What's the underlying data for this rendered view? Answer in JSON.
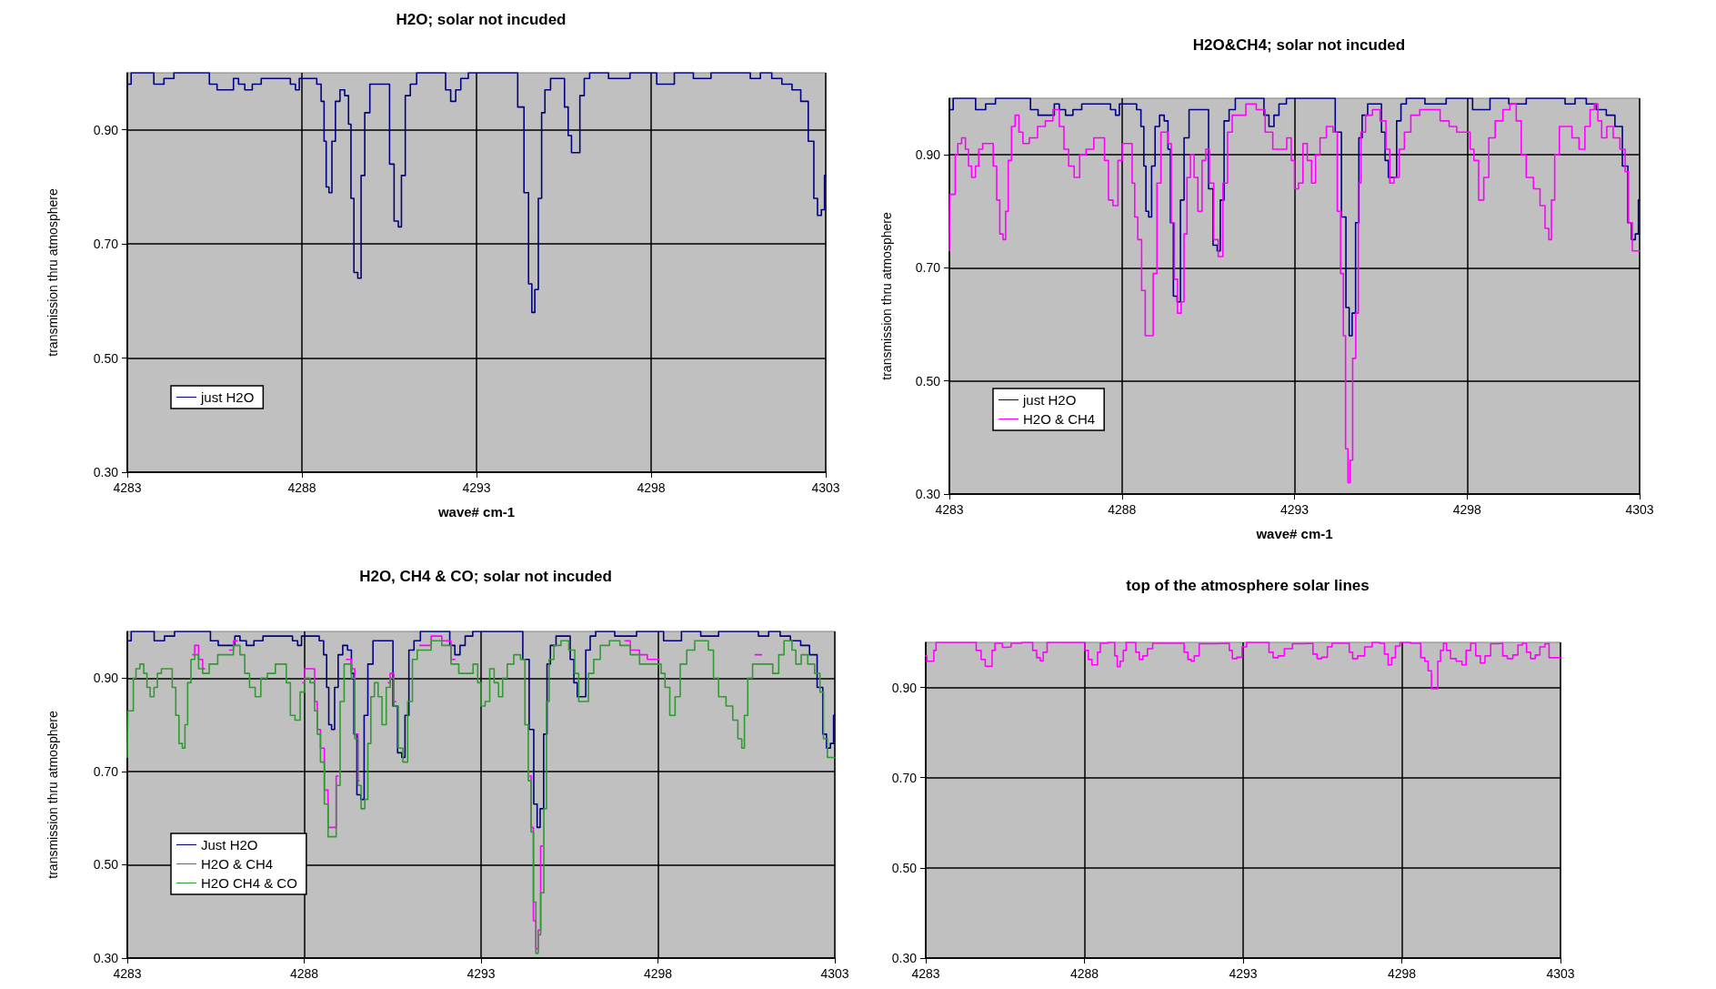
{
  "chart_data": [
    {
      "type": "step",
      "title": "H2O; solar not incuded",
      "xlabel": "wave# cm-1",
      "ylabel": "transmission thru atmosphere",
      "xlim": [
        4283,
        4303
      ],
      "xticks": [
        4283,
        4288,
        4293,
        4298,
        4303
      ],
      "ylim": [
        0.3,
        1.0
      ],
      "yticks": [
        {
          "value": 0.3,
          "label": "0.30"
        },
        {
          "value": 0.5,
          "label": "0.50"
        },
        {
          "value": 0.7,
          "label": "0.70"
        },
        {
          "value": 0.9,
          "label": "0.90"
        }
      ],
      "grid": true,
      "legend": "bottom left",
      "marker": "none",
      "series": [
        {
          "name": "just H2O",
          "color": "#000080",
          "x": [
            4283.0,
            4283.22,
            4283.72,
            4283.8,
            4284.01,
            4284.09,
            4284.3,
            4284.37,
            4285.24,
            4285.46,
            4285.68,
            4285.97,
            4286.11,
            4286.26,
            4286.47,
            4286.69,
            4286.98,
            4287.56,
            4287.78,
            4287.85,
            4288.0,
            4288.35,
            4288.5,
            4288.6,
            4288.67,
            4288.72,
            4288.83,
            4288.89,
            4289.03,
            4289.15,
            4289.3,
            4289.37,
            4289.44,
            4289.54,
            4289.66,
            4289.73,
            4289.87,
            4290.02,
            4290.16,
            4290.45,
            4290.57,
            4290.71,
            4290.81,
            4290.89,
            4291.03,
            4291.18,
            4291.39,
            4292.04,
            4292.19,
            4292.33,
            4292.48,
            4292.62,
            4292.91,
            4294.07,
            4294.29,
            4294.43,
            4294.55,
            4294.62,
            4294.72,
            4294.82,
            4294.91,
            4295.01,
            4295.23,
            4295.45,
            4295.59,
            4295.66,
            4295.78,
            4295.92,
            4296.0,
            4296.17,
            4296.31,
            4297.25,
            4297.54,
            4298.05,
            4298.27,
            4298.48,
            4298.85,
            4299.57,
            4299.86,
            4300.73,
            4300.95,
            4301.31,
            4301.6,
            4301.89,
            4302.18,
            4302.39,
            4302.61,
            4302.71,
            4302.82,
            4302.93,
            4303.0
          ],
          "values": [
            0.98,
            1.0,
            1.0,
            0.98,
            0.98,
            0.99,
            0.99,
            1.0,
            1.0,
            0.98,
            0.97,
            0.97,
            0.99,
            0.98,
            0.97,
            0.98,
            0.99,
            0.99,
            0.98,
            0.97,
            0.99,
            0.99,
            0.98,
            0.95,
            0.88,
            0.8,
            0.79,
            0.88,
            0.95,
            0.97,
            0.96,
            0.91,
            0.78,
            0.65,
            0.64,
            0.82,
            0.93,
            0.98,
            0.98,
            0.98,
            0.84,
            0.74,
            0.73,
            0.82,
            0.96,
            0.98,
            1.0,
            1.0,
            0.97,
            0.95,
            0.97,
            0.99,
            1.0,
            1.0,
            0.94,
            0.79,
            0.63,
            0.58,
            0.62,
            0.78,
            0.93,
            0.97,
            0.99,
            0.99,
            0.94,
            0.89,
            0.86,
            0.86,
            0.96,
            0.99,
            1.0,
            0.99,
            1.0,
            1.0,
            0.98,
            0.98,
            1.0,
            0.99,
            1.0,
            1.0,
            0.99,
            1.0,
            0.99,
            0.98,
            0.97,
            0.95,
            0.88,
            0.78,
            0.75,
            0.76,
            0.82
          ]
        }
      ]
    },
    {
      "type": "step",
      "title": "H2O&CH4; solar not incuded",
      "xlabel": "wave# cm-1",
      "ylabel": "transmission thru atmosphere",
      "xlim": [
        4283,
        4303
      ],
      "xticks": [
        4283,
        4288,
        4293,
        4298,
        4303
      ],
      "ylim": [
        0.3,
        1.0
      ],
      "yticks": [
        {
          "value": 0.3,
          "label": "0.30"
        },
        {
          "value": 0.5,
          "label": "0.50"
        },
        {
          "value": 0.7,
          "label": "0.70"
        },
        {
          "value": 0.9,
          "label": "0.90"
        }
      ],
      "grid": true,
      "legend": "bottom left",
      "marker": "none",
      "series": [
        {
          "name": "just H2O",
          "color": "#000080",
          "x": [
            4283.0,
            4283.22,
            4283.72,
            4283.8,
            4284.01,
            4284.09,
            4284.3,
            4284.37,
            4285.24,
            4285.46,
            4285.68,
            4285.97,
            4286.11,
            4286.26,
            4286.47,
            4286.69,
            4286.98,
            4287.56,
            4287.78,
            4287.85,
            4288.0,
            4288.35,
            4288.5,
            4288.6,
            4288.67,
            4288.72,
            4288.83,
            4288.89,
            4289.03,
            4289.15,
            4289.3,
            4289.37,
            4289.44,
            4289.54,
            4289.66,
            4289.73,
            4289.87,
            4290.02,
            4290.16,
            4290.45,
            4290.57,
            4290.71,
            4290.81,
            4290.89,
            4291.03,
            4291.18,
            4291.39,
            4292.04,
            4292.19,
            4292.33,
            4292.48,
            4292.62,
            4292.91,
            4294.07,
            4294.29,
            4294.43,
            4294.55,
            4294.62,
            4294.72,
            4294.82,
            4294.91,
            4295.01,
            4295.23,
            4295.45,
            4295.59,
            4295.66,
            4295.78,
            4295.92,
            4296.0,
            4296.17,
            4296.31,
            4297.25,
            4297.54,
            4298.05,
            4298.27,
            4298.48,
            4298.85,
            4299.57,
            4299.86,
            4300.73,
            4300.95,
            4301.31,
            4301.6,
            4301.89,
            4302.18,
            4302.39,
            4302.61,
            4302.71,
            4302.82,
            4302.93,
            4303.0
          ],
          "values": [
            0.98,
            1.0,
            1.0,
            0.98,
            0.98,
            0.99,
            0.99,
            1.0,
            1.0,
            0.98,
            0.97,
            0.97,
            0.99,
            0.98,
            0.97,
            0.98,
            0.99,
            0.99,
            0.98,
            0.97,
            0.99,
            0.99,
            0.98,
            0.95,
            0.88,
            0.8,
            0.79,
            0.88,
            0.95,
            0.97,
            0.96,
            0.91,
            0.78,
            0.65,
            0.64,
            0.82,
            0.93,
            0.98,
            0.98,
            0.98,
            0.84,
            0.74,
            0.73,
            0.82,
            0.96,
            0.98,
            1.0,
            1.0,
            0.97,
            0.95,
            0.97,
            0.99,
            1.0,
            1.0,
            0.94,
            0.79,
            0.63,
            0.58,
            0.62,
            0.78,
            0.93,
            0.97,
            0.99,
            0.99,
            0.94,
            0.89,
            0.86,
            0.86,
            0.96,
            0.99,
            1.0,
            0.99,
            1.0,
            1.0,
            0.98,
            0.98,
            1.0,
            0.99,
            1.0,
            1.0,
            0.99,
            1.0,
            0.99,
            0.98,
            0.97,
            0.95,
            0.88,
            0.78,
            0.75,
            0.76,
            0.82
          ]
        },
        {
          "name": "H2O & CH4",
          "color": "#ff00ff",
          "x": [
            4283.0,
            4283.03,
            4283.15,
            4283.19,
            4283.3,
            4283.41,
            4283.52,
            4283.59,
            4283.7,
            4283.81,
            4283.89,
            4284.04,
            4284.21,
            4284.33,
            4284.41,
            4284.51,
            4284.6,
            4284.66,
            4284.75,
            4284.85,
            4284.96,
            4285.07,
            4285.19,
            4285.44,
            4285.67,
            4285.89,
            4286.11,
            4286.26,
            4286.38,
            4286.53,
            4286.7,
            4286.85,
            4287.07,
            4287.3,
            4287.44,
            4287.55,
            4287.67,
            4287.81,
            4287.96,
            4288.07,
            4288.26,
            4288.33,
            4288.41,
            4288.51,
            4288.63,
            4288.72,
            4288.85,
            4288.96,
            4289.07,
            4289.19,
            4289.3,
            4289.37,
            4289.49,
            4289.55,
            4289.67,
            4289.76,
            4289.84,
            4289.93,
            4290.04,
            4290.14,
            4290.26,
            4290.38,
            4290.48,
            4290.59,
            4290.73,
            4290.85,
            4291.0,
            4291.12,
            4291.27,
            4291.44,
            4291.74,
            4292.04,
            4292.26,
            4292.48,
            4292.7,
            4292.85,
            4292.96,
            4293.04,
            4293.19,
            4293.3,
            4293.44,
            4293.55,
            4293.67,
            4293.81,
            4294.04,
            4294.19,
            4294.29,
            4294.38,
            4294.45,
            4294.51,
            4294.59,
            4294.64,
            4294.73,
            4294.82,
            4294.88,
            4294.97,
            4295.15,
            4295.37,
            4295.59,
            4295.71,
            4295.81,
            4295.96,
            4296.11,
            4296.26,
            4296.48,
            4296.78,
            4297.07,
            4297.37,
            4297.59,
            4297.81,
            4298.04,
            4298.14,
            4298.26,
            4298.41,
            4298.56,
            4298.7,
            4298.93,
            4299.15,
            4299.33,
            4299.52,
            4299.62,
            4299.81,
            4300.04,
            4300.19,
            4300.33,
            4300.41,
            4300.48,
            4300.6,
            4300.75,
            4300.93,
            4301.15,
            4301.34,
            4301.49,
            4301.64,
            4301.74,
            4301.84,
            4301.96,
            4302.14,
            4302.33,
            4302.53,
            4302.63,
            4302.73,
            4302.85,
            4303.0
          ],
          "values": [
            0.73,
            0.83,
            0.83,
            0.9,
            0.92,
            0.93,
            0.91,
            0.88,
            0.86,
            0.88,
            0.91,
            0.92,
            0.92,
            0.88,
            0.82,
            0.76,
            0.75,
            0.8,
            0.89,
            0.95,
            0.97,
            0.94,
            0.92,
            0.93,
            0.95,
            0.96,
            0.98,
            0.95,
            0.91,
            0.88,
            0.86,
            0.9,
            0.91,
            0.93,
            0.93,
            0.89,
            0.82,
            0.81,
            0.89,
            0.92,
            0.92,
            0.85,
            0.79,
            0.75,
            0.66,
            0.58,
            0.58,
            0.69,
            0.85,
            0.94,
            0.94,
            0.92,
            0.78,
            0.68,
            0.62,
            0.64,
            0.76,
            0.86,
            0.9,
            0.86,
            0.8,
            0.89,
            0.91,
            0.85,
            0.75,
            0.72,
            0.85,
            0.94,
            0.97,
            0.97,
            0.99,
            0.98,
            0.94,
            0.91,
            0.91,
            0.93,
            0.89,
            0.84,
            0.85,
            0.92,
            0.89,
            0.85,
            0.9,
            0.93,
            0.95,
            0.94,
            0.8,
            0.69,
            0.58,
            0.38,
            0.32,
            0.36,
            0.54,
            0.62,
            0.85,
            0.94,
            0.97,
            0.98,
            0.96,
            0.91,
            0.85,
            0.86,
            0.91,
            0.94,
            0.97,
            0.98,
            0.98,
            0.96,
            0.95,
            0.94,
            0.94,
            0.91,
            0.89,
            0.82,
            0.86,
            0.93,
            0.96,
            0.98,
            0.99,
            0.96,
            0.9,
            0.86,
            0.84,
            0.81,
            0.77,
            0.75,
            0.82,
            0.9,
            0.95,
            0.95,
            0.93,
            0.91,
            0.95,
            0.98,
            0.99,
            0.96,
            0.93,
            0.95,
            0.93,
            0.91,
            0.87,
            0.78,
            0.73,
            0.73
          ]
        }
      ]
    },
    {
      "type": "step",
      "title": "H2O, CH4 & CO; solar not incuded",
      "ylabel": "transmission thru atmosphere",
      "xlim": [
        4283,
        4303
      ],
      "xticks": [
        4283,
        4288,
        4293,
        4298,
        4303
      ],
      "ylim": [
        0.3,
        1.0
      ],
      "yticks": [
        {
          "value": 0.3,
          "label": "0.30"
        },
        {
          "value": 0.5,
          "label": "0.50"
        },
        {
          "value": 0.7,
          "label": "0.70"
        },
        {
          "value": 0.9,
          "label": "0.90"
        }
      ],
      "grid": true,
      "legend": "bottom left",
      "marker": "none",
      "series": [
        {
          "name": "Just H2O",
          "color": "#000080",
          "x": [
            4283.0,
            4283.22,
            4283.72,
            4283.8,
            4284.01,
            4284.09,
            4284.3,
            4284.37,
            4285.24,
            4285.46,
            4285.68,
            4285.97,
            4286.11,
            4286.26,
            4286.47,
            4286.69,
            4286.98,
            4287.56,
            4287.78,
            4287.85,
            4288.0,
            4288.35,
            4288.5,
            4288.6,
            4288.67,
            4288.72,
            4288.83,
            4288.89,
            4289.03,
            4289.15,
            4289.3,
            4289.37,
            4289.44,
            4289.54,
            4289.66,
            4289.73,
            4289.87,
            4290.02,
            4290.16,
            4290.45,
            4290.57,
            4290.71,
            4290.81,
            4290.89,
            4291.03,
            4291.18,
            4291.39,
            4292.04,
            4292.19,
            4292.33,
            4292.48,
            4292.62,
            4292.91,
            4294.07,
            4294.29,
            4294.43,
            4294.55,
            4294.62,
            4294.72,
            4294.82,
            4294.91,
            4295.01,
            4295.23,
            4295.45,
            4295.59,
            4295.66,
            4295.78,
            4295.92,
            4296.0,
            4296.17,
            4296.31,
            4297.25,
            4297.54,
            4298.05,
            4298.27,
            4298.48,
            4298.85,
            4299.57,
            4299.86,
            4300.73,
            4300.95,
            4301.31,
            4301.6,
            4301.89,
            4302.18,
            4302.39,
            4302.61,
            4302.71,
            4302.82,
            4302.93,
            4303.0
          ],
          "values": [
            0.98,
            1.0,
            1.0,
            0.98,
            0.98,
            0.99,
            0.99,
            1.0,
            1.0,
            0.98,
            0.97,
            0.97,
            0.99,
            0.98,
            0.97,
            0.98,
            0.99,
            0.99,
            0.98,
            0.97,
            0.99,
            0.99,
            0.98,
            0.95,
            0.88,
            0.8,
            0.79,
            0.88,
            0.95,
            0.97,
            0.96,
            0.91,
            0.78,
            0.65,
            0.64,
            0.82,
            0.93,
            0.98,
            0.98,
            0.98,
            0.84,
            0.74,
            0.73,
            0.82,
            0.96,
            0.98,
            1.0,
            1.0,
            0.97,
            0.95,
            0.97,
            0.99,
            1.0,
            1.0,
            0.94,
            0.79,
            0.63,
            0.58,
            0.62,
            0.78,
            0.93,
            0.97,
            0.99,
            0.99,
            0.94,
            0.89,
            0.86,
            0.86,
            0.96,
            0.99,
            1.0,
            0.99,
            1.0,
            1.0,
            0.98,
            0.98,
            1.0,
            0.99,
            1.0,
            1.0,
            0.99,
            1.0,
            0.99,
            0.98,
            0.97,
            0.95,
            0.88,
            0.78,
            0.75,
            0.76,
            0.82
          ]
        },
        {
          "name": "H2O & CH4",
          "color": "#ff00ff",
          "x": [
            4284.85,
            4284.96,
            4285.07,
            4285.19,
            4285.44,
            4285.89,
            4286.11,
            4286.26,
            4287.96,
            4288.07,
            4288.26,
            4288.33,
            4288.41,
            4288.51,
            4288.63,
            4288.72,
            4288.85,
            4288.96,
            4289.07,
            4289.19,
            4289.3,
            4289.37,
            4289.49,
            4289.55,
            4289.67,
            4290.38,
            4290.48,
            4290.59,
            4290.73,
            4291.27,
            4291.44,
            4291.74,
            4292.04,
            4292.26,
            4292.48,
            4294.38,
            4294.45,
            4294.51,
            4294.59,
            4294.64,
            4294.73,
            4294.82,
            4297.07,
            4297.37,
            4297.59,
            4297.81,
            4298.04,
            4298.14,
            4300.75,
            4300.93
          ],
          "values": [
            0.95,
            0.97,
            0.94,
            0.92,
            null,
            0.96,
            0.98,
            null,
            0.89,
            0.92,
            0.92,
            0.85,
            0.79,
            0.75,
            0.66,
            0.58,
            0.58,
            0.69,
            null,
            0.94,
            0.94,
            0.92,
            0.78,
            0.68,
            null,
            0.89,
            0.91,
            0.85,
            null,
            0.97,
            0.97,
            0.99,
            0.98,
            0.94,
            null,
            0.69,
            0.58,
            0.38,
            0.32,
            0.36,
            0.54,
            null,
            0.98,
            0.96,
            0.95,
            0.94,
            0.94,
            null,
            0.95,
            0.95
          ]
        },
        {
          "name": "H2O CH4 & CO",
          "color": "#339933",
          "x": [
            4283.0,
            4283.03,
            4283.15,
            4283.19,
            4283.3,
            4283.41,
            4283.52,
            4283.59,
            4283.7,
            4283.81,
            4283.89,
            4284.04,
            4284.21,
            4284.33,
            4284.41,
            4284.51,
            4284.6,
            4284.66,
            4284.75,
            4284.85,
            4284.96,
            4285.07,
            4285.19,
            4285.44,
            4285.67,
            4285.89,
            4286.11,
            4286.26,
            4286.38,
            4286.53,
            4286.7,
            4286.85,
            4287.07,
            4287.3,
            4287.44,
            4287.55,
            4287.67,
            4287.81,
            4287.96,
            4288.07,
            4288.26,
            4288.33,
            4288.41,
            4288.51,
            4288.63,
            4288.72,
            4288.85,
            4288.96,
            4289.07,
            4289.19,
            4289.3,
            4289.37,
            4289.49,
            4289.55,
            4289.67,
            4289.76,
            4289.84,
            4289.93,
            4290.04,
            4290.14,
            4290.26,
            4290.38,
            4290.48,
            4290.59,
            4290.73,
            4290.85,
            4291.0,
            4291.12,
            4291.27,
            4291.44,
            4291.74,
            4292.04,
            4292.26,
            4292.48,
            4292.7,
            4292.85,
            4292.96,
            4293.04,
            4293.19,
            4293.3,
            4293.44,
            4293.55,
            4293.67,
            4293.81,
            4294.04,
            4294.19,
            4294.29,
            4294.38,
            4294.45,
            4294.51,
            4294.59,
            4294.64,
            4294.73,
            4294.82,
            4294.88,
            4294.97,
            4295.15,
            4295.37,
            4295.59,
            4295.71,
            4295.81,
            4295.96,
            4296.11,
            4296.26,
            4296.48,
            4296.78,
            4297.07,
            4297.37,
            4297.59,
            4297.81,
            4298.04,
            4298.14,
            4298.26,
            4298.41,
            4298.56,
            4298.7,
            4298.93,
            4299.15,
            4299.33,
            4299.52,
            4299.62,
            4299.81,
            4300.04,
            4300.19,
            4300.33,
            4300.41,
            4300.48,
            4300.6,
            4300.75,
            4300.93,
            4301.15,
            4301.34,
            4301.49,
            4301.64,
            4301.74,
            4301.84,
            4301.96,
            4302.14,
            4302.33,
            4302.53,
            4302.63,
            4302.73,
            4302.85,
            4303.0
          ],
          "values": [
            0.73,
            0.83,
            0.83,
            0.9,
            0.92,
            0.93,
            0.91,
            0.88,
            0.86,
            0.88,
            0.91,
            0.92,
            0.92,
            0.88,
            0.82,
            0.76,
            0.75,
            0.8,
            0.89,
            0.94,
            0.95,
            0.92,
            0.91,
            0.93,
            0.95,
            0.95,
            0.97,
            0.95,
            0.91,
            0.88,
            0.86,
            0.9,
            0.91,
            0.93,
            0.93,
            0.89,
            0.82,
            0.81,
            0.87,
            0.9,
            0.89,
            0.83,
            0.78,
            0.72,
            0.63,
            0.56,
            0.56,
            0.67,
            0.85,
            0.93,
            0.93,
            0.9,
            0.77,
            0.67,
            0.62,
            0.64,
            0.76,
            0.86,
            0.89,
            0.86,
            0.8,
            0.88,
            0.9,
            0.84,
            0.75,
            0.72,
            0.85,
            0.94,
            0.96,
            0.96,
            0.98,
            0.97,
            0.93,
            0.91,
            0.91,
            0.93,
            0.89,
            0.84,
            0.85,
            0.92,
            0.89,
            0.86,
            0.9,
            0.93,
            0.95,
            0.94,
            0.8,
            0.68,
            0.57,
            0.42,
            0.31,
            0.35,
            0.44,
            0.62,
            0.85,
            0.94,
            0.97,
            0.98,
            0.96,
            0.91,
            0.85,
            0.85,
            0.91,
            0.94,
            0.97,
            0.98,
            0.97,
            0.95,
            0.93,
            0.93,
            0.93,
            0.91,
            0.88,
            0.82,
            0.86,
            0.93,
            0.96,
            0.98,
            0.98,
            0.96,
            0.9,
            0.86,
            0.84,
            0.81,
            0.77,
            0.75,
            0.82,
            0.9,
            0.93,
            0.93,
            0.93,
            0.91,
            0.95,
            0.98,
            0.98,
            0.96,
            0.93,
            0.95,
            0.93,
            0.91,
            0.87,
            0.77,
            0.73,
            0.73
          ]
        }
      ]
    },
    {
      "type": "step",
      "title": "top of the atmosphere solar lines",
      "xlim": [
        4283,
        4303
      ],
      "xticks": [
        4283,
        4288,
        4293,
        4298,
        4303
      ],
      "ylim": [
        0.3,
        1.0
      ],
      "yticks": [
        {
          "value": 0.3,
          "label": "0.30"
        },
        {
          "value": 0.5,
          "label": "0.50"
        },
        {
          "value": 0.7,
          "label": "0.70"
        },
        {
          "value": 0.9,
          "label": "0.90"
        }
      ],
      "grid": true,
      "marker": "none",
      "series": [
        {
          "color": "#ff00ff",
          "x": [
            4283.0,
            4283.07,
            4283.22,
            4283.29,
            4283.36,
            4284.52,
            4284.66,
            4284.83,
            4284.92,
            4285.06,
            4285.12,
            4285.24,
            4285.38,
            4285.45,
            4285.64,
            4285.74,
            4286.32,
            4286.42,
            4286.57,
            4286.65,
            4286.75,
            4286.9,
            4287.98,
            4288.05,
            4288.2,
            4288.27,
            4288.39,
            4288.44,
            4288.56,
            4288.92,
            4288.99,
            4289.08,
            4289.17,
            4289.28,
            4289.35,
            4289.57,
            4289.67,
            4289.79,
            4289.89,
            4290.08,
            4290.22,
            4291.09,
            4291.19,
            4291.33,
            4291.4,
            4291.52,
            4291.71,
            4292.53,
            4292.6,
            4292.72,
            4292.89,
            4293.04,
            4293.18,
            4293.76,
            4293.87,
            4294.02,
            4294.19,
            4294.41,
            4294.7,
            4295.13,
            4295.27,
            4295.39,
            4295.56,
            4295.75,
            4295.85,
            4296.29,
            4296.4,
            4296.5,
            4296.72,
            4296.94,
            4297.19,
            4297.4,
            4297.51,
            4297.63,
            4297.73,
            4297.87,
            4298.02,
            4298.52,
            4298.67,
            4298.78,
            4298.88,
            4298.99,
            4299.1,
            4299.17,
            4299.27,
            4299.36,
            4299.46,
            4299.61,
            4299.82,
            4299.97,
            4300.08,
            4300.26,
            4300.4,
            4300.55,
            4300.69,
            4300.91,
            4301.12,
            4301.24,
            4301.41,
            4301.59,
            4301.73,
            4301.87,
            4301.99,
            4302.13,
            4302.28,
            4302.42,
            4302.6,
            4302.68,
            4303.0
          ],
          "values": [
            0.97,
            0.958,
            0.958,
            0.982,
            1.0,
            1.0,
            0.982,
            0.962,
            0.947,
            0.947,
            0.982,
            0.998,
            0.998,
            0.989,
            0.99,
            0.998,
            1.0,
            0.982,
            0.966,
            0.959,
            0.978,
            1.0,
            1.0,
            0.982,
            0.962,
            0.95,
            0.95,
            0.978,
            0.998,
            1.0,
            0.97,
            0.946,
            0.958,
            0.982,
            1.0,
            1.0,
            0.978,
            0.962,
            0.97,
            0.986,
            0.998,
            0.998,
            0.978,
            0.962,
            0.958,
            0.97,
            0.997,
            0.998,
            0.982,
            0.964,
            0.967,
            0.99,
            1.0,
            1.0,
            0.978,
            0.966,
            0.97,
            0.986,
            0.997,
            0.998,
            0.974,
            0.964,
            0.967,
            0.99,
            0.998,
            0.998,
            0.978,
            0.964,
            0.97,
            0.99,
            1.0,
            0.998,
            0.974,
            0.95,
            0.966,
            0.992,
            1.0,
            0.998,
            0.966,
            0.958,
            0.937,
            0.897,
            0.897,
            0.958,
            0.982,
            0.998,
            0.982,
            0.964,
            0.958,
            0.95,
            0.982,
            0.998,
            0.97,
            0.954,
            0.97,
            0.997,
            0.998,
            0.97,
            0.964,
            0.972,
            0.994,
            0.998,
            0.978,
            0.964,
            0.972,
            0.99,
            0.997,
            0.966,
            0.966
          ]
        }
      ]
    }
  ]
}
